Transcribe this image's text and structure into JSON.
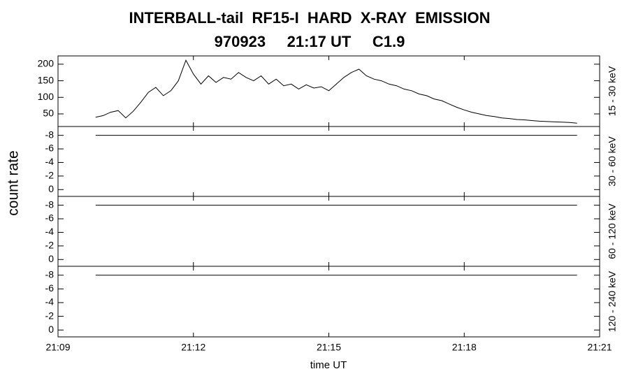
{
  "figure": {
    "title": "INTERBALL-tail  RF15-I  HARD  X-RAY  EMISSION",
    "subtitle": "970923     21:17 UT     C1.9",
    "ylabel": "count rate",
    "xlabel": "time UT",
    "xlim": [
      "21:09:00",
      "21:21:00"
    ],
    "xticks": [
      "21:09",
      "21:12",
      "21:15",
      "21:18",
      "21:21"
    ]
  },
  "chart_data": [
    {
      "type": "line",
      "band_label": "15 - 30 keV",
      "ylim": [
        12,
        225
      ],
      "yticks": [
        50,
        100,
        150,
        200
      ],
      "series": [
        {
          "color": "#000000",
          "x": [
            "21:09:50",
            "21:10:00",
            "21:10:10",
            "21:10:20",
            "21:10:30",
            "21:10:40",
            "21:10:50",
            "21:11:00",
            "21:11:10",
            "21:11:20",
            "21:11:30",
            "21:11:40",
            "21:11:50",
            "21:12:00",
            "21:12:10",
            "21:12:20",
            "21:12:30",
            "21:12:40",
            "21:12:50",
            "21:13:00",
            "21:13:10",
            "21:13:20",
            "21:13:30",
            "21:13:40",
            "21:13:50",
            "21:14:00",
            "21:14:10",
            "21:14:20",
            "21:14:30",
            "21:14:40",
            "21:14:50",
            "21:15:00",
            "21:15:10",
            "21:15:20",
            "21:15:30",
            "21:15:40",
            "21:15:50",
            "21:16:00",
            "21:16:10",
            "21:16:20",
            "21:16:30",
            "21:16:40",
            "21:16:50",
            "21:17:00",
            "21:17:10",
            "21:17:20",
            "21:17:30",
            "21:17:40",
            "21:17:50",
            "21:18:00",
            "21:18:10",
            "21:18:20",
            "21:18:30",
            "21:18:40",
            "21:18:50",
            "21:19:00",
            "21:19:10",
            "21:19:20",
            "21:19:30",
            "21:19:40",
            "21:19:50",
            "21:20:00",
            "21:20:10",
            "21:20:20",
            "21:20:30"
          ],
          "values": [
            40,
            45,
            55,
            60,
            38,
            58,
            85,
            115,
            130,
            105,
            120,
            150,
            212,
            170,
            140,
            165,
            145,
            160,
            155,
            175,
            160,
            150,
            165,
            140,
            155,
            135,
            140,
            125,
            138,
            128,
            132,
            120,
            140,
            160,
            175,
            185,
            165,
            155,
            150,
            140,
            135,
            125,
            120,
            110,
            105,
            95,
            90,
            80,
            70,
            62,
            55,
            50,
            45,
            42,
            38,
            36,
            33,
            32,
            30,
            28,
            27,
            26,
            25,
            24,
            22
          ]
        }
      ]
    },
    {
      "type": "line",
      "band_label": "30 - 60 keV",
      "ylim": [
        1,
        -9.3
      ],
      "yticks": [
        -8,
        -6,
        -4,
        -2,
        0
      ],
      "series": [
        {
          "color": "#000000",
          "x": [
            "21:09:50",
            "21:20:30"
          ],
          "values": [
            -8,
            -8
          ]
        }
      ]
    },
    {
      "type": "line",
      "band_label": "60 - 120 keV",
      "ylim": [
        1,
        -9.3
      ],
      "yticks": [
        -8,
        -6,
        -4,
        -2,
        0
      ],
      "series": [
        {
          "color": "#000000",
          "x": [
            "21:09:50",
            "21:20:30"
          ],
          "values": [
            -8,
            -8
          ]
        }
      ]
    },
    {
      "type": "line",
      "band_label": "120 - 240 keV",
      "ylim": [
        1,
        -9.3
      ],
      "yticks": [
        -8,
        -6,
        -4,
        -2,
        0
      ],
      "series": [
        {
          "color": "#000000",
          "x": [
            "21:09:50",
            "21:20:30"
          ],
          "values": [
            -8,
            -8
          ]
        }
      ]
    }
  ]
}
